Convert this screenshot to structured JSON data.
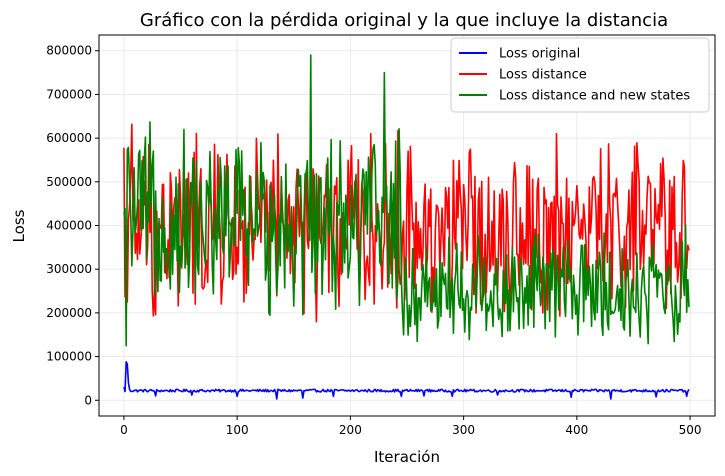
{
  "chart_data": {
    "type": "line",
    "title": "Gráfico con la pérdida original y la que incluye la distancia",
    "xlabel": "Iteración",
    "ylabel": "Loss",
    "xlim": [
      -22,
      522
    ],
    "ylim": [
      -36000,
      836000
    ],
    "xticks": [
      0,
      100,
      200,
      300,
      400,
      500
    ],
    "yticks": [
      0,
      100000,
      200000,
      300000,
      400000,
      500000,
      600000,
      700000,
      800000
    ],
    "grid": true,
    "legend_position": "top-right",
    "n_points": 500,
    "series": [
      {
        "name": "Loss original",
        "color": "#0000ff",
        "pattern": "noisy",
        "base": 22000,
        "amp": 3000,
        "dips": [
          {
            "x": 28,
            "value": 10000
          },
          {
            "x": 60,
            "value": 12000
          },
          {
            "x": 100,
            "value": 9000
          },
          {
            "x": 135,
            "value": 3000
          },
          {
            "x": 158,
            "value": 5000
          },
          {
            "x": 185,
            "value": 9000
          },
          {
            "x": 245,
            "value": 9000
          },
          {
            "x": 265,
            "value": 10000
          },
          {
            "x": 290,
            "value": 9000
          },
          {
            "x": 330,
            "value": 12000
          },
          {
            "x": 395,
            "value": 7000
          },
          {
            "x": 430,
            "value": 3000
          },
          {
            "x": 470,
            "value": 8000
          },
          {
            "x": 497,
            "value": 9000
          }
        ],
        "keypoints": [
          {
            "x": 0,
            "value": 30000
          },
          {
            "x": 2,
            "value": 88000
          },
          {
            "x": 3,
            "value": 83000
          },
          {
            "x": 4,
            "value": 40000
          },
          {
            "x": 5,
            "value": 25000
          }
        ]
      },
      {
        "name": "Loss distance",
        "color": "#ff0000",
        "pattern": "noisy",
        "base": 390000,
        "amp": 170000,
        "min": 165000,
        "max": 670000,
        "keypoints": [
          {
            "x": 0,
            "value": 578000
          },
          {
            "x": 3,
            "value": 225000
          },
          {
            "x": 7,
            "value": 632000
          }
        ]
      },
      {
        "name": "Loss distance and new states",
        "color": "#008000",
        "pattern": "noisy",
        "base": 410000,
        "amp": 170000,
        "min": 120000,
        "max": 790000,
        "second_half_base": 255000,
        "second_half_amp": 110000,
        "keypoints": [
          {
            "x": 0,
            "value": 425000
          },
          {
            "x": 2,
            "value": 125000
          },
          {
            "x": 165,
            "value": 790000
          },
          {
            "x": 230,
            "value": 750000
          }
        ]
      }
    ]
  }
}
